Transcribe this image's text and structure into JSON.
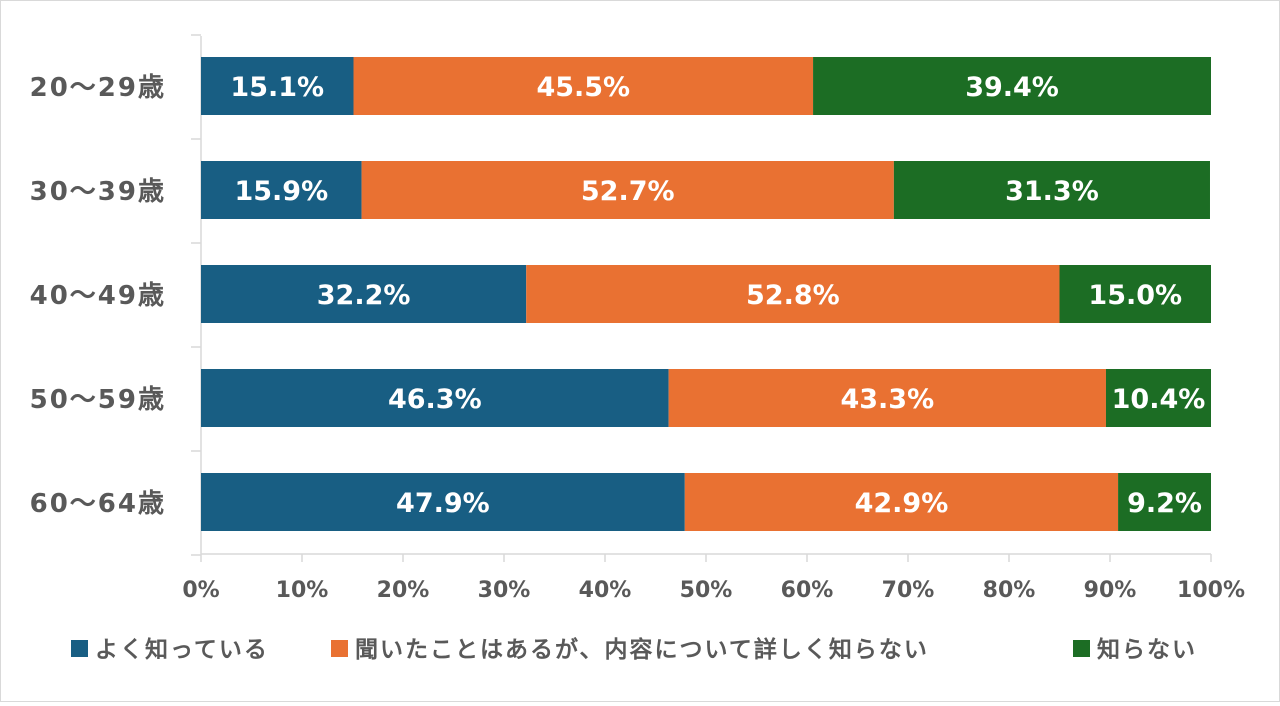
{
  "chart_data": {
    "type": "bar",
    "orientation": "horizontal",
    "stacked": true,
    "categories": [
      "20～29歳",
      "30～39歳",
      "40～49歳",
      "50～59歳",
      "60～64歳"
    ],
    "series": [
      {
        "name": "よく知っている",
        "color": "#185E83",
        "values": [
          15.1,
          15.9,
          32.2,
          46.3,
          47.9
        ],
        "labels": [
          "15.1%",
          "15.9%",
          "32.2%",
          "46.3%",
          "47.9%"
        ]
      },
      {
        "name": "聞いたことはあるが、内容について詳しく知らない",
        "color": "#E97132",
        "values": [
          45.5,
          52.7,
          52.8,
          43.3,
          42.9
        ],
        "labels": [
          "45.5%",
          "52.7%",
          "52.8%",
          "43.3%",
          "42.9%"
        ]
      },
      {
        "name": "知らない",
        "color": "#1C6D24",
        "values": [
          39.4,
          31.3,
          15.0,
          10.4,
          9.2
        ],
        "labels": [
          "39.4%",
          "31.3%",
          "15.0%",
          "10.4%",
          "9.2%"
        ]
      }
    ],
    "xlim": [
      0,
      100
    ],
    "xticks": [
      "0%",
      "10%",
      "20%",
      "30%",
      "40%",
      "50%",
      "60%",
      "70%",
      "80%",
      "90%",
      "100%"
    ],
    "grid": false,
    "legend_position": "bottom"
  }
}
